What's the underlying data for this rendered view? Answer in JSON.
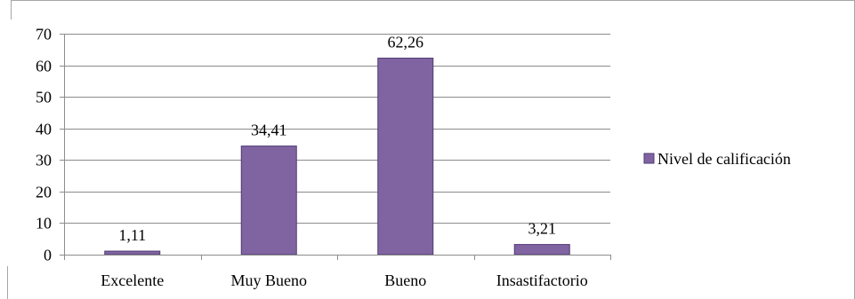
{
  "chart_data": {
    "type": "bar",
    "categories": [
      "Excelente",
      "Muy Bueno",
      "Bueno",
      "Insastifactorio"
    ],
    "series": [
      {
        "name": "Nivel de calificación",
        "values": [
          1.11,
          34.41,
          62.26,
          3.21
        ],
        "value_labels": [
          "1,11",
          "34,41",
          "62,26",
          "3,21"
        ],
        "color": "#8064a2",
        "border_color": "#4f3a72"
      }
    ],
    "ylim": [
      0,
      70
    ],
    "yticks": [
      0,
      10,
      20,
      30,
      40,
      50,
      60,
      70
    ],
    "grid": true,
    "legend": "right",
    "title": "",
    "xlabel": "",
    "ylabel": ""
  }
}
